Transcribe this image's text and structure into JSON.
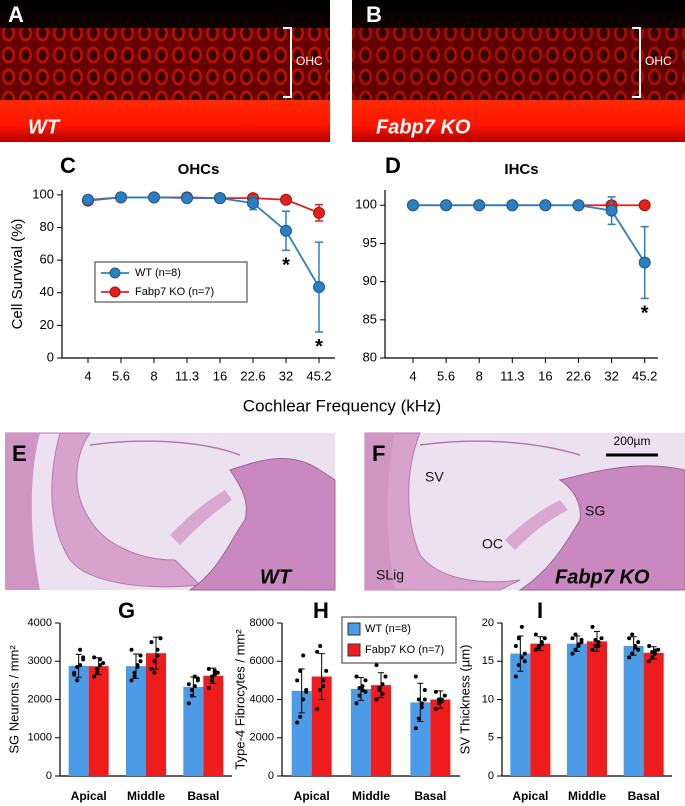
{
  "figure": {
    "panel_labels": [
      "A",
      "B",
      "C",
      "D",
      "E",
      "F",
      "G",
      "H",
      "I"
    ],
    "image_a": {
      "genotype": "WT",
      "region": "OHC"
    },
    "image_b": {
      "genotype": "Fabp7 KO",
      "region": "OHC"
    },
    "image_e": {
      "genotype": "WT"
    },
    "image_f": {
      "genotype": "Fabp7 KO",
      "labels": [
        "SV",
        "OC",
        "SG",
        "SLig"
      ],
      "scale_bar": "200µm"
    },
    "shared_xlabel": "Cochlear Frequency (kHz)"
  },
  "chart_data": [
    {
      "type": "line",
      "title": "OHCs",
      "ylabel": "Cell Survival (%)",
      "categories": [
        "4",
        "5.6",
        "8",
        "11.3",
        "16",
        "22.6",
        "32",
        "45.2"
      ],
      "ylim": [
        0,
        103
      ],
      "yticks": [
        0,
        20,
        40,
        60,
        80,
        100
      ],
      "legend": "lower left",
      "series": [
        {
          "name": "WT (n=8)",
          "color": "#2b7fc1",
          "values": [
            97,
            98.5,
            98.5,
            98,
            98,
            95,
            78,
            43.5
          ],
          "errors": [
            2,
            1,
            0.5,
            1,
            1,
            4,
            12,
            27.5
          ]
        },
        {
          "name": "Fabp7 KO (n=7)",
          "color": "#e3201b",
          "values": [
            96.5,
            98.5,
            98.5,
            98.5,
            98,
            98,
            97,
            89
          ],
          "errors": [
            1,
            0.5,
            0.5,
            0.5,
            0.5,
            1,
            1,
            5
          ]
        }
      ],
      "annotations": [
        {
          "category": "32",
          "text": "*"
        },
        {
          "category": "45.2",
          "text": "*"
        }
      ]
    },
    {
      "type": "line",
      "title": "IHCs",
      "categories": [
        "4",
        "5.6",
        "8",
        "11.3",
        "16",
        "22.6",
        "32",
        "45.2"
      ],
      "ylim": [
        80,
        102
      ],
      "yticks": [
        80,
        85,
        90,
        95,
        100
      ],
      "series": [
        {
          "color": "#2b7fc1",
          "values": [
            100,
            100,
            100,
            100,
            100,
            100,
            99.3,
            92.5
          ],
          "errors": [
            0,
            0,
            0,
            0,
            0,
            0,
            1.8,
            4.7
          ]
        },
        {
          "color": "#e3201b",
          "values": [
            100,
            100,
            100,
            100,
            100,
            100,
            100,
            100
          ],
          "errors": [
            0,
            0,
            0,
            0,
            0,
            0,
            0,
            0
          ]
        }
      ],
      "annotations": [
        {
          "category": "45.2",
          "text": "*"
        }
      ]
    },
    {
      "type": "bar",
      "ylabel": "SG Neurons / mm²",
      "categories": [
        "Apical",
        "Middle",
        "Basal"
      ],
      "ylim": [
        0,
        4000
      ],
      "yticks": [
        0,
        1000,
        2000,
        3000,
        4000
      ],
      "series": [
        {
          "color": "#4c9be6",
          "values": [
            2880,
            2870,
            2330
          ],
          "errors": [
            300,
            320,
            260
          ],
          "points": [
            [
              2650,
              2500,
              2900,
              3100,
              2700,
              2850,
              3300,
              3050
            ],
            [
              2500,
              2700,
              2900,
              3150,
              3300,
              2600,
              2850,
              3000
            ],
            [
              1900,
              2100,
              2350,
              2500,
              2400,
              2250,
              2600,
              2550
            ]
          ]
        },
        {
          "color": "#ee1c1c",
          "values": [
            2870,
            3210,
            2620
          ],
          "errors": [
            220,
            420,
            200
          ],
          "points": [
            [
              2600,
              2700,
              2900,
              2950,
              3100,
              2800,
              3050
            ],
            [
              2800,
              3000,
              3300,
              3600,
              3500,
              2700,
              3150
            ],
            [
              2300,
              2500,
              2650,
              2700,
              2800,
              2600,
              2750
            ]
          ]
        }
      ]
    },
    {
      "type": "bar",
      "ylabel": "Type-4 Fibrocytes / mm²",
      "categories": [
        "Apical",
        "Middle",
        "Basal"
      ],
      "ylim": [
        0,
        8000
      ],
      "yticks": [
        0,
        2000,
        4000,
        6000,
        8000
      ],
      "legend": "top right",
      "series": [
        {
          "name": "WT (n=8)",
          "color": "#4c9be6",
          "values": [
            4450,
            4550,
            3850
          ],
          "errors": [
            1150,
            600,
            1000
          ],
          "points": [
            [
              2800,
              3100,
              4000,
              4500,
              5000,
              5500,
              6300,
              4400
            ],
            [
              3800,
              4200,
              4500,
              5000,
              5200,
              4600,
              4700,
              4400
            ],
            [
              2500,
              3000,
              3800,
              4500,
              5200,
              4000,
              3600,
              4000
            ]
          ]
        },
        {
          "name": "Fabp7 KO (n=7)",
          "color": "#ee1c1c",
          "values": [
            5200,
            4750,
            4000
          ],
          "errors": [
            1200,
            650,
            450
          ],
          "points": [
            [
              3500,
              4500,
              5000,
              5500,
              6500,
              6800,
              4700
            ],
            [
              4000,
              4500,
              4800,
              5200,
              5800,
              4600,
              4300
            ],
            [
              3500,
              3800,
              4000,
              4200,
              4400,
              4000,
              3900
            ]
          ]
        }
      ]
    },
    {
      "type": "bar",
      "ylabel": "SV Thickness (µm)",
      "categories": [
        "Apical",
        "Middle",
        "Basal"
      ],
      "ylim": [
        0,
        20
      ],
      "yticks": [
        0,
        5,
        10,
        15,
        20
      ],
      "series": [
        {
          "color": "#4c9be6",
          "values": [
            16.0,
            17.3,
            17.0
          ],
          "errors": [
            2.3,
            1.0,
            1.2
          ],
          "points": [
            [
              13,
              14.5,
              15.5,
              16,
              17,
              18,
              19.5,
              15
            ],
            [
              16,
              16.5,
              17,
              17.5,
              18,
              18.5,
              17.2,
              17.8
            ],
            [
              15.5,
              16,
              17,
              17.5,
              18,
              18.5,
              16.8,
              16.5
            ]
          ]
        },
        {
          "color": "#ee1c1c",
          "values": [
            17.3,
            17.6,
            16.1
          ],
          "errors": [
            0.9,
            1.3,
            0.8
          ],
          "points": [
            [
              16.5,
              17,
              17.5,
              18,
              18.5,
              16.8,
              17.2
            ],
            [
              16.5,
              17,
              17.5,
              18,
              19.5,
              17.8,
              17
            ],
            [
              15,
              15.5,
              16,
              16.5,
              17,
              16.2,
              16.4
            ]
          ]
        }
      ]
    }
  ]
}
